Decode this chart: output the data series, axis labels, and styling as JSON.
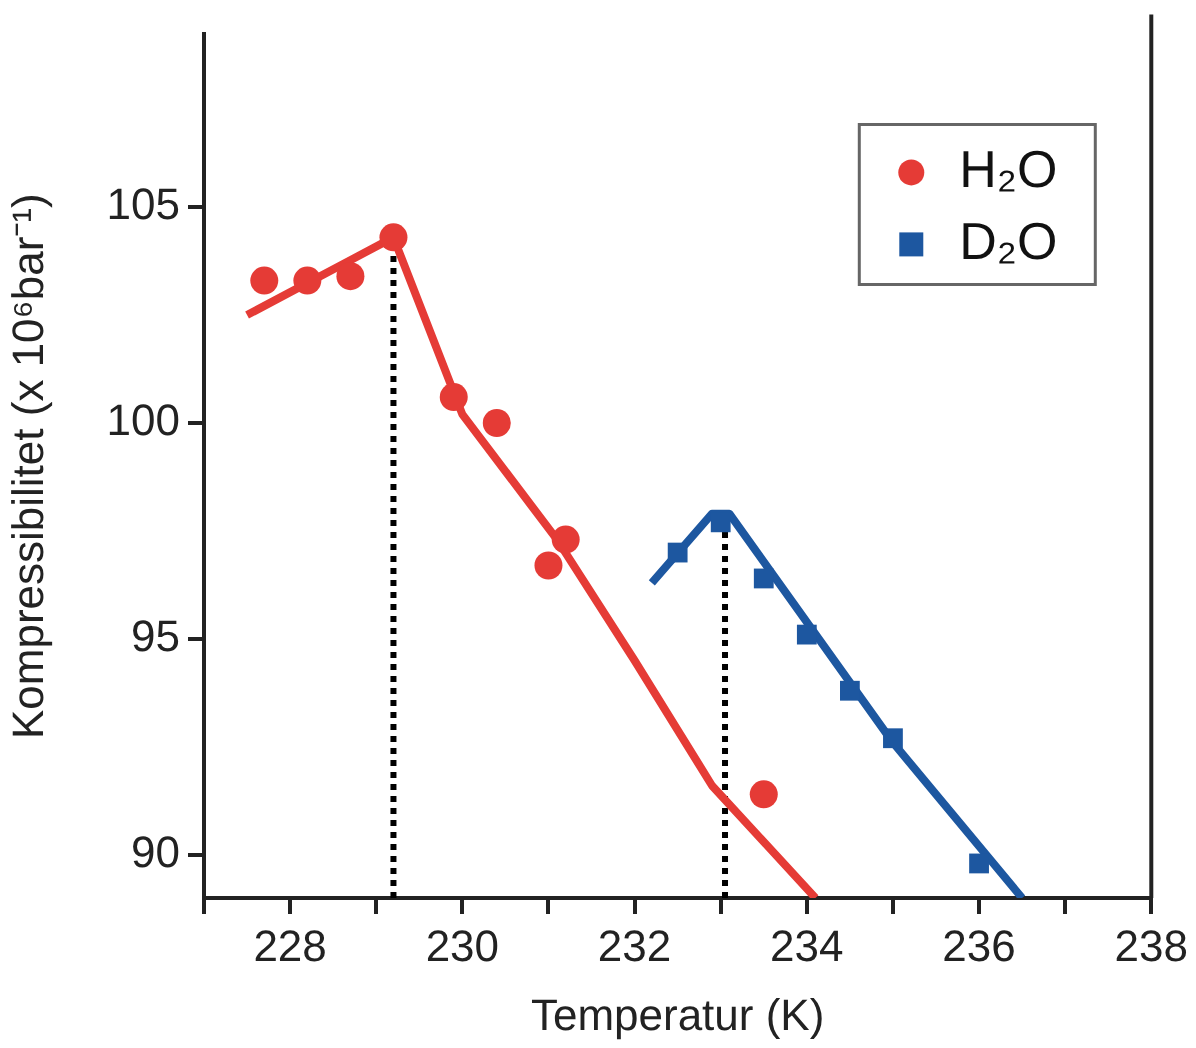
{
  "chart_data": {
    "type": "scatter",
    "xlabel": "Temperatur (K)",
    "ylabel": "Kompressibilitet (x 10⁶bar⁻¹)",
    "xlim": [
      227,
      238
    ],
    "ylim": [
      89,
      109
    ],
    "xticks": [
      {
        "value": 227,
        "label": null
      },
      228,
      {
        "value": 229,
        "label": null
      },
      230,
      {
        "value": 231,
        "label": null
      },
      232,
      {
        "value": 233,
        "label": null
      },
      234,
      {
        "value": 235,
        "label": null
      },
      236,
      {
        "value": 237,
        "label": null
      },
      238
    ],
    "yticks": [
      90,
      95,
      100,
      105
    ],
    "grid": false,
    "legend": "top right",
    "series": [
      {
        "name": "H₂O",
        "type": "scatter",
        "marker": "circle",
        "color": "#e53b36",
        "x": [
          227.7,
          228.2,
          228.7,
          229.2,
          229.9,
          230.4,
          231.0,
          231.2,
          233.5
        ],
        "values": [
          103.3,
          103.3,
          103.4,
          104.3,
          100.6,
          100.0,
          96.7,
          97.3,
          91.4
        ]
      },
      {
        "type": "line",
        "marker": "none",
        "color": "#e53b36",
        "x": [
          227.5,
          229.2,
          230.0,
          231.1,
          232.0,
          232.9,
          234.1
        ],
        "values": [
          102.5,
          104.3,
          100.2,
          97.3,
          94.5,
          91.6,
          89.0
        ]
      },
      {
        "name": "D₂O",
        "type": "scatter",
        "marker": "square",
        "color": "#1d57a0",
        "x": [
          232.5,
          233.0,
          233.5,
          234.0,
          234.5,
          235.0,
          236.0
        ],
        "values": [
          97.0,
          97.7,
          96.4,
          95.1,
          93.8,
          92.7,
          89.8
        ]
      },
      {
        "type": "line",
        "marker": "none",
        "color": "#1d57a0",
        "x": [
          232.2,
          232.9,
          233.1,
          235.0,
          236.5
        ],
        "values": [
          96.3,
          97.9,
          97.9,
          92.6,
          89.0
        ]
      },
      {
        "type": "line",
        "marker": "none",
        "line_style": "dotted",
        "color": "#000000",
        "x": [
          229.2,
          229.2
        ],
        "values": [
          89.0,
          104.3
        ]
      },
      {
        "type": "line",
        "marker": "none",
        "line_style": "dotted",
        "color": "#000000",
        "x": [
          233.05,
          233.05
        ],
        "values": [
          89.0,
          97.9
        ]
      }
    ]
  }
}
